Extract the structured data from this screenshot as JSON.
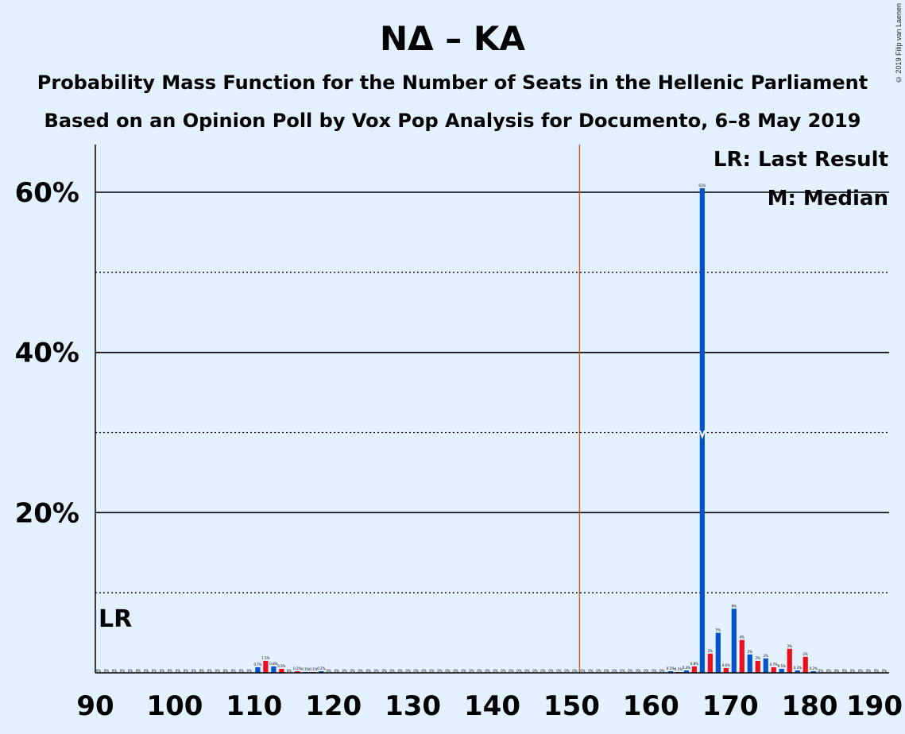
{
  "header": {
    "title": "ΝΔ – ΚΑ",
    "subtitle1": "Probability Mass Function for the Number of Seats in the Hellenic Parliament",
    "subtitle2": "Based on an Opinion Poll by Vox Pop Analysis for Documento, 6–8 May 2019",
    "copyright": "© 2019 Filip van Laenen"
  },
  "legend": {
    "last_result": "LR: Last Result",
    "median": "M: Median"
  },
  "markers": {
    "lr_label": "LR",
    "lr_seat": 90,
    "majority_seat": 151,
    "median_seat": 166
  },
  "colors": {
    "poll": "#0053cc",
    "other": "#ee0e1b",
    "majority_line": "#c7550f",
    "background": "#e3f0fd"
  },
  "chart_data": {
    "type": "bar",
    "xlabel": "",
    "ylabel": "",
    "xlim": [
      90,
      190
    ],
    "ylim": [
      0,
      66
    ],
    "xticks": [
      90,
      100,
      110,
      120,
      130,
      140,
      150,
      160,
      170,
      180,
      190
    ],
    "xtick_labels": [
      "90",
      "100",
      "110",
      "120",
      "130",
      "140",
      "150",
      "160",
      "170",
      "180",
      "190"
    ],
    "yticks_solid": [
      20,
      40,
      60
    ],
    "ytick_labels": [
      "20%",
      "40%",
      "60%"
    ],
    "yticks_dotted": [
      10,
      30,
      50
    ],
    "grid": true,
    "legend_position": "top-right",
    "series": [
      {
        "seats": [
          110,
          111,
          112,
          113,
          115,
          116,
          117,
          118,
          162,
          163,
          164,
          165,
          166,
          167,
          168,
          169,
          170,
          171,
          172,
          173,
          174,
          175,
          176,
          177,
          178,
          179,
          180
        ],
        "values": [
          0.7,
          1.5,
          0.8,
          0.5,
          0.2,
          0.1,
          0.1,
          0.2,
          0.2,
          0.1,
          0.3,
          0.8,
          60.5,
          2.4,
          5.0,
          0.6,
          8.0,
          4.1,
          2.3,
          1.5,
          1.8,
          0.7,
          0.5,
          3.0,
          0.3,
          2.0,
          0.2
        ],
        "labels": [
          "0.7%",
          "1.5%",
          "0.8%",
          "0.5%",
          "0.2%",
          "0.1%",
          "0.1%",
          "0.2%",
          "0.2%",
          "0.1%",
          "0.3%",
          "0.8%",
          "61%",
          "2%",
          "5%",
          "0.6%",
          "8%",
          "4%",
          "2%",
          "2%",
          "2%",
          "0.7%",
          "0.5%",
          "3%",
          "0.3%",
          "2%",
          "0.2%"
        ]
      }
    ]
  }
}
